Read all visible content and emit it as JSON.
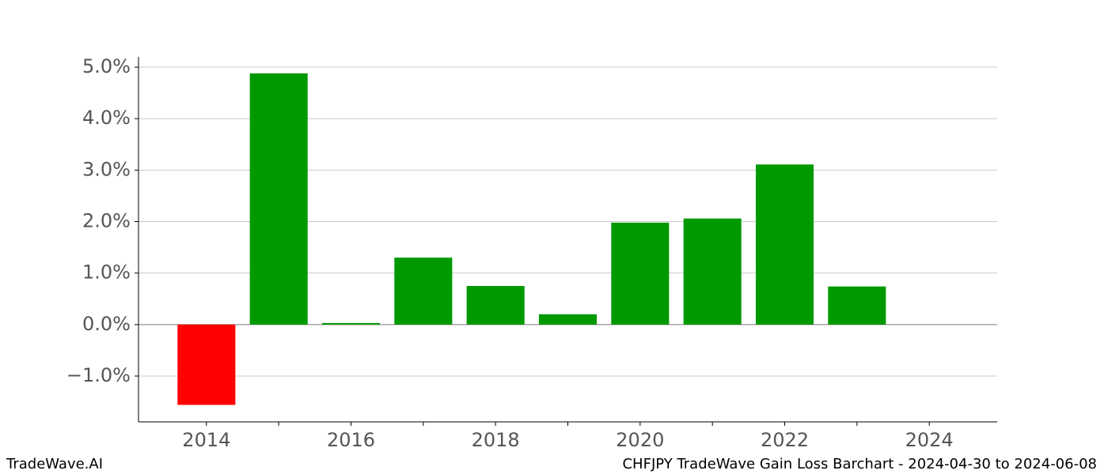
{
  "chart_data": {
    "type": "bar",
    "x": [
      2014,
      2015,
      2016,
      2017,
      2018,
      2019,
      2020,
      2021,
      2022,
      2023,
      2024
    ],
    "values": [
      -1.56,
      4.88,
      0.03,
      1.3,
      0.75,
      0.2,
      1.98,
      2.06,
      3.11,
      0.74,
      0
    ],
    "colors": [
      "#ff0000",
      "#009900",
      "#009900",
      "#009900",
      "#009900",
      "#009900",
      "#009900",
      "#009900",
      "#009900",
      "#009900",
      "#009900"
    ],
    "xlim": [
      2013.06,
      2024.94
    ],
    "xticks": [
      2014,
      2016,
      2018,
      2020,
      2022,
      2024
    ],
    "xminorticks": [
      2015,
      2017,
      2019,
      2021,
      2023
    ],
    "ylim": [
      -1.89,
      5.2
    ],
    "yticks": [
      {
        "value": -1,
        "label": "−1.0%"
      },
      {
        "value": 0,
        "label": "0.0%"
      },
      {
        "value": 1,
        "label": "1.0%"
      },
      {
        "value": 2,
        "label": "2.0%"
      },
      {
        "value": 3,
        "label": "3.0%"
      },
      {
        "value": 4,
        "label": "4.0%"
      },
      {
        "value": 5,
        "label": "5.0%"
      }
    ],
    "grid": true,
    "footer_left": "TradeWave.AI",
    "footer_right": "CHFJPY TradeWave Gain Loss Barchart - 2024-04-30 to 2024-06-08"
  }
}
